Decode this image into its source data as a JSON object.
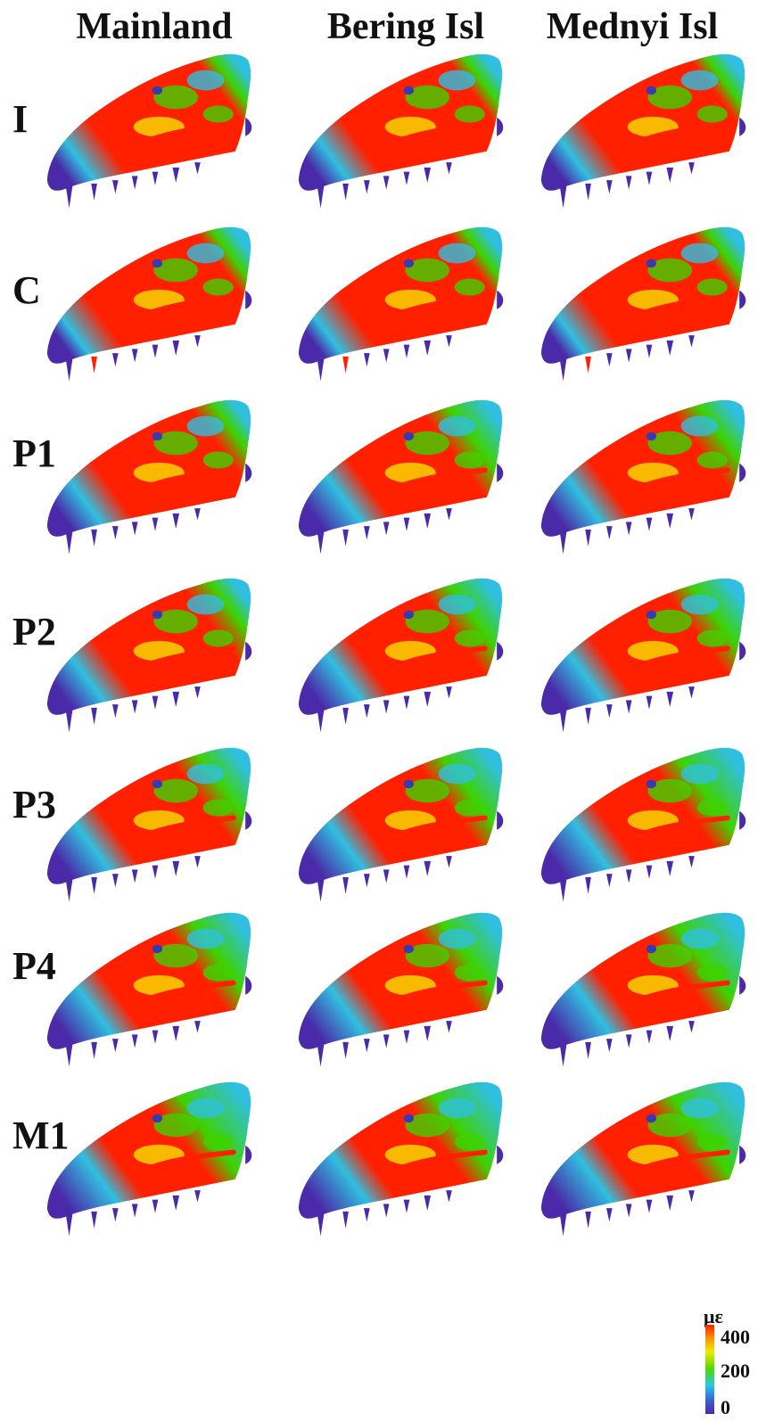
{
  "columns": [
    "Mainland",
    "Bering Isl",
    "Mednyi Isl"
  ],
  "rows": [
    "I",
    "C",
    "P1",
    "P2",
    "P3",
    "P4",
    "M1"
  ],
  "legend": {
    "unit": "με",
    "max": "400",
    "mid": "200",
    "min": "0"
  },
  "strain_levels": [
    [
      0.85,
      0.8,
      0.82
    ],
    [
      0.95,
      0.92,
      0.9
    ],
    [
      0.7,
      0.55,
      0.6
    ],
    [
      0.65,
      0.55,
      0.55
    ],
    [
      0.55,
      0.5,
      0.45
    ],
    [
      0.5,
      0.48,
      0.42
    ],
    [
      0.4,
      0.42,
      0.38
    ]
  ],
  "colors": {
    "high": "#ff2000",
    "upper": "#f7e000",
    "mid": "#3ed200",
    "low": "#30bfe0",
    "base": "#4a2aa8"
  }
}
